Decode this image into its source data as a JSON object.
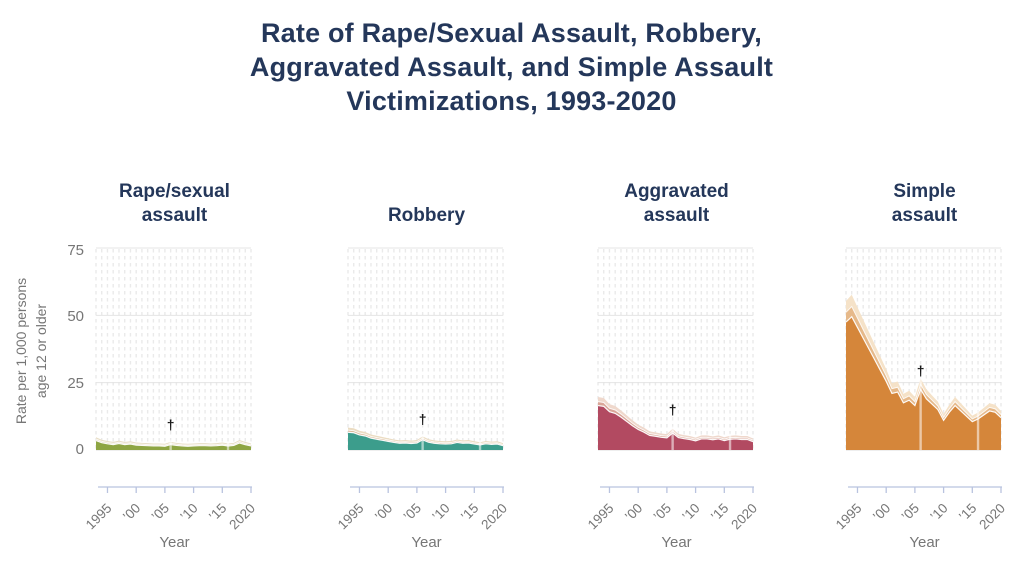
{
  "title": {
    "line1": "Rate of Rape/Sexual Assault, Robbery,",
    "line2": "Aggravated Assault, and Simple Assault",
    "line3": "Victimizations, 1993-2020"
  },
  "y_axis": {
    "label_line1": "Rate per 1,000 persons",
    "label_line2": "age 12 or older",
    "ticks": [
      "75",
      "50",
      "25",
      "0"
    ]
  },
  "x_axis": {
    "label": "Year",
    "tick_labels": [
      "1995",
      "’00",
      "’05",
      "’10",
      "’15",
      "2020"
    ],
    "tick_years": [
      1995,
      2000,
      2005,
      2010,
      2015,
      2020
    ]
  },
  "dagger_symbol": "†",
  "colors": {
    "title_navy": "#24375A",
    "axis_text_grey": "#767676",
    "axis_line_blue": "#B9C3DF",
    "gridline": "#EAEAEA"
  },
  "chart_data": {
    "type": "area",
    "title": "Rate of Rape/Sexual Assault, Robbery, Aggravated Assault, and Simple Assault Victimizations, 1993-2020",
    "ylabel": "Rate per 1,000 persons age 12 or older",
    "xlabel": "Year",
    "ylim": [
      0,
      75
    ],
    "grid": true,
    "note_symbol_year": 2006,
    "break_years": [
      2006,
      2016
    ],
    "years": [
      1993,
      1994,
      1995,
      1996,
      1997,
      1998,
      1999,
      2000,
      2001,
      2002,
      2003,
      2004,
      2005,
      2006,
      2007,
      2008,
      2009,
      2010,
      2011,
      2012,
      2013,
      2014,
      2015,
      2016,
      2017,
      2018,
      2019,
      2020
    ],
    "panels": [
      {
        "name": "Rape/sexual assault",
        "title_line1": "Rape/sexual",
        "title_line2": "assault",
        "color": "#8EA543",
        "band_color": "#D3BE9B",
        "band_outer": "#E8DEC6",
        "dagger_value": 9,
        "values": [
          3.5,
          2.7,
          2.3,
          2.0,
          2.4,
          2.0,
          2.2,
          1.8,
          1.7,
          1.6,
          1.5,
          1.5,
          1.4,
          2.0,
          1.7,
          1.5,
          1.4,
          1.5,
          1.6,
          1.6,
          1.5,
          1.6,
          1.8,
          1.5,
          1.7,
          2.6,
          2.0,
          1.5
        ]
      },
      {
        "name": "Robbery",
        "title_line1": "Robbery",
        "title_line2": "",
        "color": "#3C9D8C",
        "band_color": "#D7B492",
        "band_outer": "#EBDCC2",
        "dagger_value": 11,
        "values": [
          6.6,
          6.4,
          5.6,
          5.2,
          4.4,
          4.0,
          3.6,
          3.2,
          2.8,
          2.5,
          2.6,
          2.4,
          2.6,
          3.8,
          2.9,
          2.5,
          2.3,
          2.2,
          2.3,
          2.8,
          2.5,
          2.6,
          2.2,
          1.9,
          2.3,
          2.1,
          2.2,
          1.6
        ]
      },
      {
        "name": "Aggravated assault",
        "title_line1": "Aggravated",
        "title_line2": "assault",
        "color": "#B24A61",
        "band_color": "#DAA698",
        "band_outer": "#EFD8CC",
        "dagger_value": 14.5,
        "values": [
          16.5,
          16.2,
          14.2,
          13.6,
          12.2,
          10.6,
          9.0,
          7.6,
          6.6,
          5.4,
          5.1,
          4.7,
          4.5,
          6.3,
          4.6,
          4.2,
          3.9,
          3.4,
          4.1,
          4.1,
          3.8,
          4.1,
          3.5,
          4.0,
          4.1,
          3.9,
          3.9,
          3.1
        ]
      },
      {
        "name": "Simple assault",
        "title_line1": "Simple",
        "title_line2": "assault",
        "color": "#D5863A",
        "band_color": "#E6B98A",
        "band_outer": "#F5E2C8",
        "dagger_value": 29,
        "values": [
          47.5,
          49.5,
          45.5,
          41.5,
          37.5,
          33.5,
          29.5,
          25.5,
          21.0,
          21.5,
          17.5,
          18.5,
          16.5,
          22.5,
          19.0,
          17.0,
          15.0,
          11.0,
          14.0,
          16.5,
          14.5,
          12.5,
          10.5,
          11.5,
          13.0,
          14.5,
          14.0,
          12.0
        ]
      }
    ]
  }
}
